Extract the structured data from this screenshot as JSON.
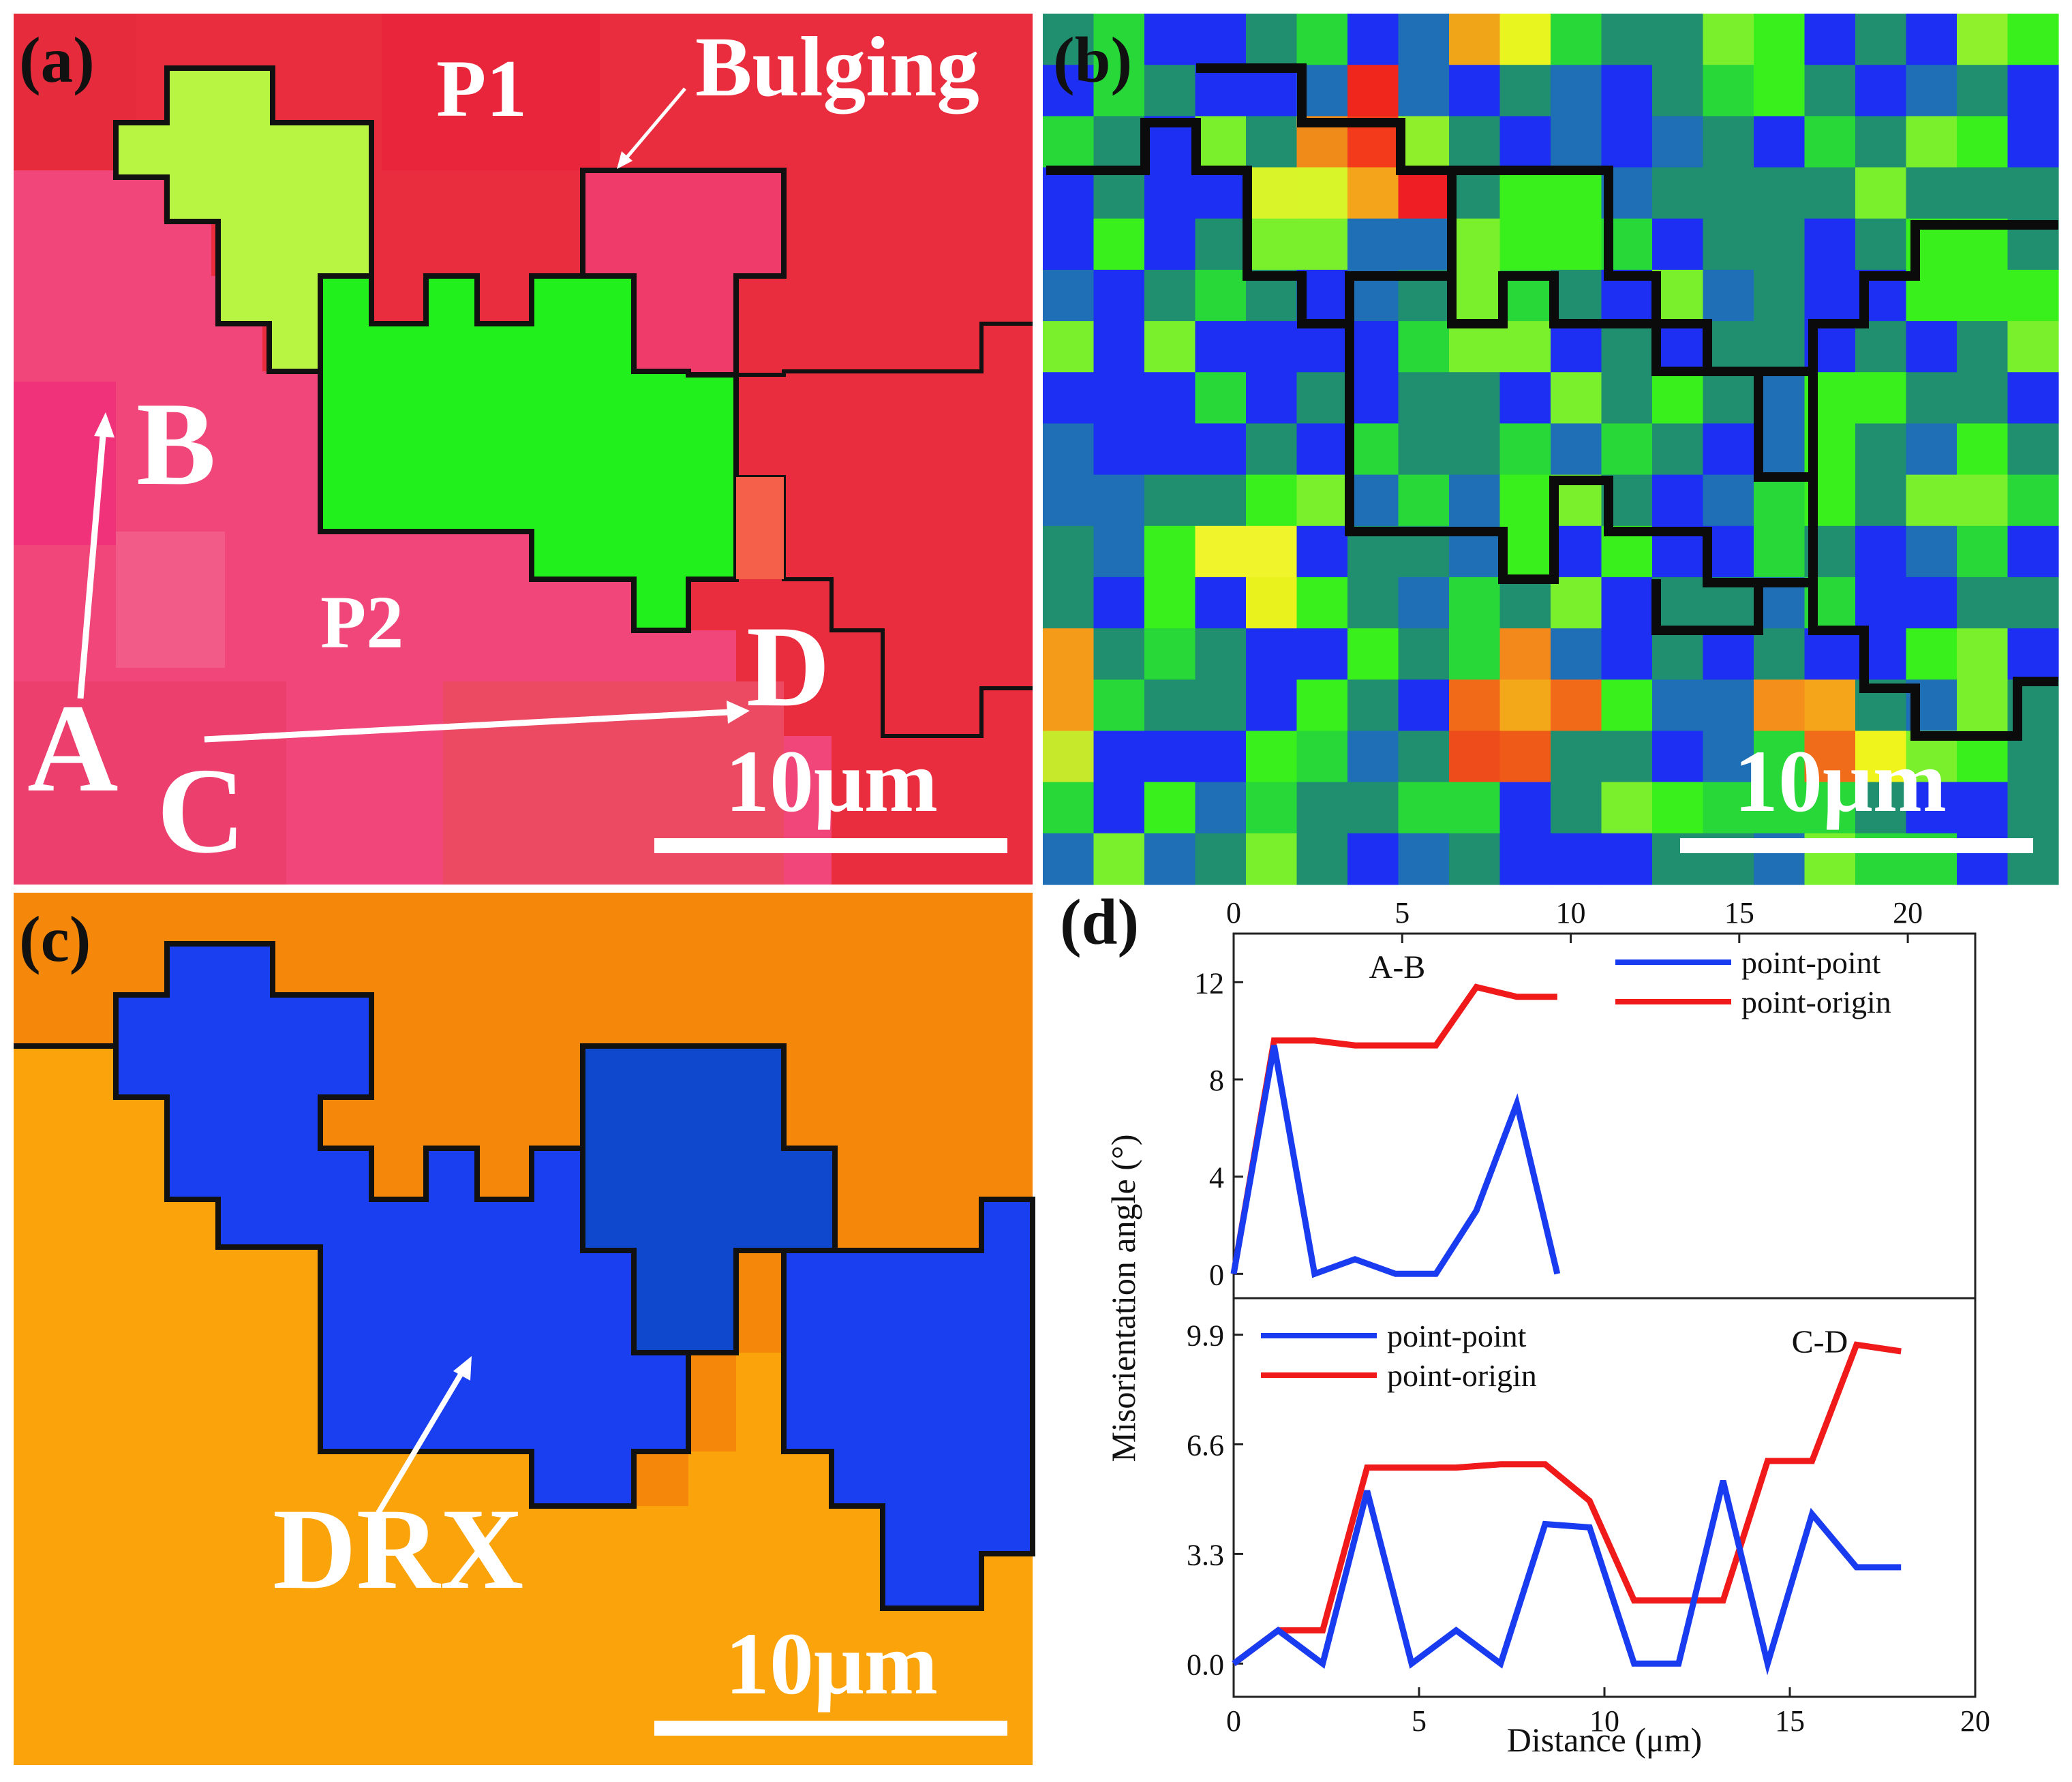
{
  "panels": {
    "a": {
      "label": "(a)",
      "annotations": {
        "p1": "P1",
        "p2": "P2",
        "bulging": "Bulging",
        "a": "A",
        "b": "B",
        "c": "C",
        "d": "D"
      },
      "scale_bar": "10μm"
    },
    "b": {
      "label": "(b)",
      "scale_bar": "10μm"
    },
    "c": {
      "label": "(c)",
      "annotation": "DRX",
      "scale_bar": "10μm"
    },
    "d": {
      "label": "(d)"
    }
  },
  "colors": {
    "red_grain": "#ea2d3e",
    "pink_grain": "#f04679",
    "green_grain": "#22f01d",
    "lime_grain": "#b8f542",
    "orange_bg": "#f5870a",
    "orange_light": "#fba30a",
    "blue_grain": "#1a3ff0",
    "blue_dark": "#0f3cc4",
    "series_point_point": "#1a3cf0",
    "series_point_origin": "#f01a1a"
  },
  "chart_data": [
    {
      "type": "line",
      "title": "A-B",
      "xlabel": "Distance (μm)",
      "ylabel": "Misorientation angle (°)",
      "x_axis_position": "top",
      "xlim": [
        0,
        22
      ],
      "ylim": [
        -1,
        14
      ],
      "xticks": [
        "0",
        "5",
        "10",
        "15",
        "20"
      ],
      "yticks": [
        "0",
        "4",
        "8",
        "12"
      ],
      "legend_position": "top-right",
      "series": [
        {
          "name": "point-point",
          "x": [
            0,
            1.2,
            2.4,
            3.6,
            4.8,
            6.0,
            7.2,
            8.4,
            9.6
          ],
          "y": [
            0,
            9.4,
            0,
            0.6,
            0,
            0,
            2.6,
            7.0,
            0
          ]
        },
        {
          "name": "point-origin",
          "x": [
            0,
            1.2,
            2.4,
            3.6,
            4.8,
            6.0,
            7.2,
            8.4,
            9.6
          ],
          "y": [
            0,
            9.6,
            9.6,
            9.4,
            9.4,
            9.4,
            11.8,
            11.4,
            11.4
          ]
        }
      ]
    },
    {
      "type": "line",
      "title": "C-D",
      "xlabel": "Distance (μm)",
      "ylabel": "Misorientation angle (°)",
      "xlim": [
        0,
        20
      ],
      "ylim": [
        -1,
        11
      ],
      "xticks": [
        "0",
        "5",
        "10",
        "15",
        "20"
      ],
      "yticks": [
        "0.0",
        "3.3",
        "6.6",
        "9.9"
      ],
      "legend_position": "top-left",
      "series": [
        {
          "name": "point-point",
          "x": [
            0,
            1.2,
            2.4,
            3.6,
            4.8,
            6.0,
            7.2,
            8.4,
            9.6,
            10.8,
            12.0,
            13.2,
            14.4,
            15.6,
            16.8,
            18.0
          ],
          "y": [
            0,
            1.0,
            0,
            5.2,
            0,
            1.0,
            0,
            4.2,
            4.1,
            0,
            0,
            5.5,
            0,
            4.5,
            2.9,
            2.9
          ]
        },
        {
          "name": "point-origin",
          "x": [
            0,
            1.2,
            2.4,
            3.6,
            4.8,
            6.0,
            7.2,
            8.4,
            9.6,
            10.8,
            12.0,
            13.2,
            14.4,
            15.6,
            16.8,
            18.0
          ],
          "y": [
            0,
            1.0,
            1.0,
            5.9,
            5.9,
            5.9,
            6.0,
            6.0,
            4.9,
            1.9,
            1.9,
            1.9,
            6.1,
            6.1,
            9.6,
            9.4
          ]
        }
      ]
    }
  ]
}
